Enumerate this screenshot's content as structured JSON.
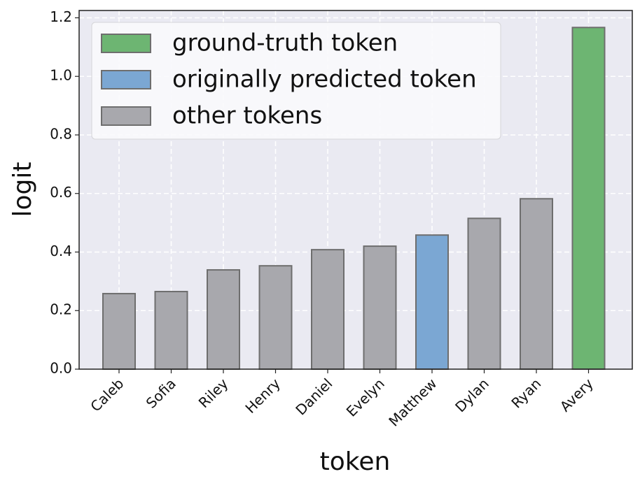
{
  "chart_data": {
    "type": "bar",
    "xlabel": "token",
    "ylabel": "logit",
    "categories": [
      "Caleb",
      "Sofia",
      "Riley",
      "Henry",
      "Daniel",
      "Evelyn",
      "Matthew",
      "Dylan",
      "Ryan",
      "Avery"
    ],
    "values": [
      0.258,
      0.265,
      0.339,
      0.353,
      0.408,
      0.42,
      0.458,
      0.515,
      0.582,
      1.167
    ],
    "colors": [
      "#a8a8ad",
      "#a8a8ad",
      "#a8a8ad",
      "#a8a8ad",
      "#a8a8ad",
      "#a8a8ad",
      "#7ba7d3",
      "#a8a8ad",
      "#a8a8ad",
      "#6db572"
    ],
    "ylim": [
      0,
      1.225
    ],
    "yticks": [
      {
        "value": 0,
        "label": "0.0"
      },
      {
        "value": 0.2,
        "label": "0.2"
      },
      {
        "value": 0.4,
        "label": "0.4"
      },
      {
        "value": 0.6,
        "label": "0.6"
      },
      {
        "value": 0.8,
        "label": "0.8"
      },
      {
        "value": 1.0,
        "label": "1.0"
      },
      {
        "value": 1.2,
        "label": "1.2"
      }
    ],
    "grid": true,
    "legend_loc": "upper left",
    "legend": [
      {
        "label": "ground-truth token",
        "color": "#6db572"
      },
      {
        "label": "originally predicted token",
        "color": "#7ba7d3"
      },
      {
        "label": "other tokens",
        "color": "#a8a8ad"
      }
    ]
  }
}
